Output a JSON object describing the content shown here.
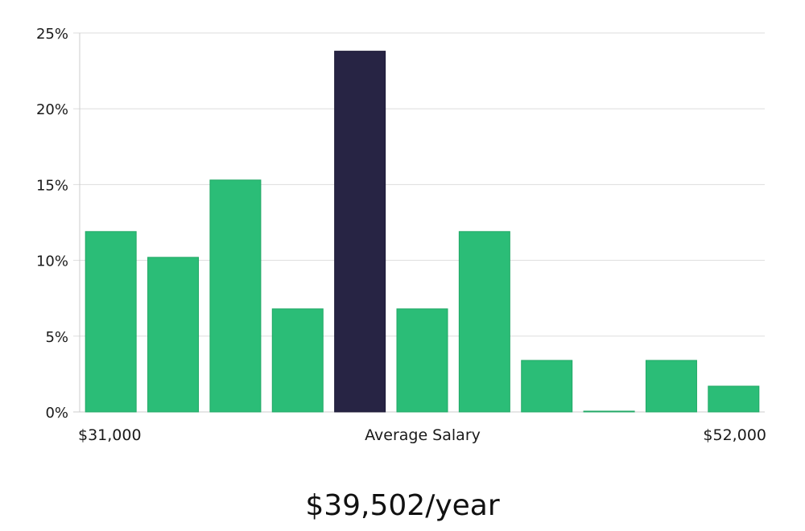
{
  "chart_data": {
    "type": "bar",
    "bar_values": [
      11.9,
      10.2,
      15.3,
      6.8,
      23.8,
      6.8,
      11.9,
      3.4,
      0,
      3.4,
      1.7
    ],
    "highlight_index": 4,
    "y_ticks": [
      "0%",
      "5%",
      "10%",
      "15%",
      "20%",
      "25%"
    ],
    "y_tick_values": [
      0,
      5,
      10,
      15,
      20,
      25
    ],
    "ylim": [
      0,
      25
    ],
    "grid": true,
    "x_left_label": "$31,000",
    "x_center_label": "Average Salary",
    "x_right_label": "$52,000"
  },
  "colors": {
    "bar": "#2bbd77",
    "highlight": "#272444",
    "grid": "#dddddd",
    "axis": "#cccccc"
  },
  "salary_text": "$39,502/year"
}
